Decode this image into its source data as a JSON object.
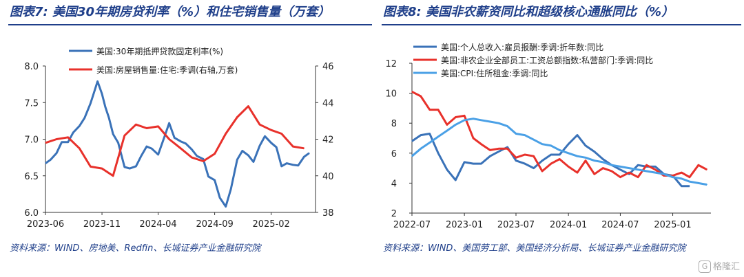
{
  "left_title": "图表7: 美国30年期房贷利率（%）和住宅销售量（万套）",
  "right_title": "图表8: 美国非农薪资同比和超级核心通胀同比（%）",
  "left_source": "资料来源：WIND、房地美、Redfin、长城证券产业金融研究院",
  "right_source": "资料来源：WIND、美国劳工部、美国经济分析局、长城证券产业金融研究院",
  "watermark": "格隆汇",
  "colors": {
    "blue": "#3a72b8",
    "red": "#e8312b",
    "lightblue": "#4aa0e6",
    "title": "#1f3f8a"
  },
  "chart_data": [
    {
      "type": "line",
      "x_ticks": [
        "2023-06",
        "2023-11",
        "2024-04",
        "2024-09",
        "2025-02"
      ],
      "ylim_left": [
        6.0,
        8.0
      ],
      "y_ticks_left": [
        "6.0",
        "6.5",
        "7.0",
        "7.5",
        "8.0"
      ],
      "ylim_right": [
        38,
        46
      ],
      "y_ticks_right": [
        "38",
        "40",
        "42",
        "44",
        "46"
      ],
      "x_range": [
        "2023-06-01",
        "2025-06-01"
      ],
      "series": [
        {
          "name": "美国:30年期抵押贷款固定利率(%)",
          "axis": "left",
          "x": [
            "2023-06-01",
            "2023-06-15",
            "2023-07-01",
            "2023-07-15",
            "2023-08-01",
            "2023-08-15",
            "2023-09-01",
            "2023-09-15",
            "2023-10-01",
            "2023-10-10",
            "2023-10-20",
            "2023-11-01",
            "2023-11-10",
            "2023-11-20",
            "2023-12-01",
            "2023-12-15",
            "2024-01-01",
            "2024-01-15",
            "2024-02-01",
            "2024-02-15",
            "2024-03-01",
            "2024-03-15",
            "2024-04-01",
            "2024-04-15",
            "2024-05-01",
            "2024-05-15",
            "2024-06-01",
            "2024-06-15",
            "2024-07-01",
            "2024-07-15",
            "2024-08-01",
            "2024-08-15",
            "2024-09-01",
            "2024-09-15",
            "2024-10-01",
            "2024-10-15",
            "2024-11-01",
            "2024-11-15",
            "2024-12-01",
            "2024-12-15",
            "2025-01-01",
            "2025-01-15",
            "2025-02-01",
            "2025-02-15",
            "2025-03-01",
            "2025-03-15",
            "2025-04-01",
            "2025-04-15",
            "2025-05-01",
            "2025-05-15"
          ],
          "values": [
            6.67,
            6.72,
            6.81,
            6.96,
            6.96,
            7.09,
            7.18,
            7.29,
            7.49,
            7.63,
            7.79,
            7.62,
            7.44,
            7.29,
            7.07,
            6.95,
            6.62,
            6.6,
            6.63,
            6.77,
            6.9,
            6.87,
            6.79,
            6.99,
            7.22,
            7.02,
            6.97,
            6.94,
            6.86,
            6.77,
            6.73,
            6.49,
            6.44,
            6.2,
            6.08,
            6.32,
            6.72,
            6.84,
            6.78,
            6.69,
            6.91,
            7.04,
            6.95,
            6.89,
            6.63,
            6.67,
            6.65,
            6.64,
            6.76,
            6.81
          ]
        },
        {
          "name": "美国:房屋销售量:住宅:季调(右轴,万套)",
          "axis": "right",
          "x": [
            "2023-06-01",
            "2023-07-01",
            "2023-08-01",
            "2023-09-01",
            "2023-10-01",
            "2023-11-01",
            "2023-12-01",
            "2024-01-01",
            "2024-02-01",
            "2024-03-01",
            "2024-04-01",
            "2024-05-01",
            "2024-06-01",
            "2024-07-01",
            "2024-08-01",
            "2024-09-01",
            "2024-10-01",
            "2024-11-01",
            "2024-12-01",
            "2025-01-01",
            "2025-02-01",
            "2025-03-01",
            "2025-04-01",
            "2025-05-01"
          ],
          "values": [
            41.8,
            42.0,
            42.1,
            41.5,
            40.5,
            40.4,
            40.0,
            42.2,
            42.8,
            42.6,
            42.7,
            42.0,
            41.5,
            41.0,
            40.8,
            41.2,
            42.3,
            43.2,
            43.8,
            42.8,
            42.5,
            42.3,
            41.6,
            41.5
          ]
        }
      ]
    },
    {
      "type": "line",
      "x_ticks": [
        "2022-07",
        "2023-01",
        "2023-07",
        "2024-01",
        "2024-07",
        "2025-01"
      ],
      "ylim": [
        2,
        12
      ],
      "y_ticks": [
        "2",
        "4",
        "6",
        "8",
        "10",
        "12"
      ],
      "x_range": [
        "2022-07-01",
        "2025-05-15"
      ],
      "series": [
        {
          "name": "美国:个人总收入:雇员报酬:季调:折年数:同比",
          "x": [
            "2022-07-01",
            "2022-08-01",
            "2022-09-01",
            "2022-10-01",
            "2022-11-01",
            "2022-12-01",
            "2023-01-01",
            "2023-02-01",
            "2023-03-01",
            "2023-04-01",
            "2023-05-01",
            "2023-06-01",
            "2023-07-01",
            "2023-08-01",
            "2023-09-01",
            "2023-10-01",
            "2023-11-01",
            "2023-12-01",
            "2024-01-01",
            "2024-02-01",
            "2024-03-01",
            "2024-04-01",
            "2024-05-01",
            "2024-06-01",
            "2024-07-01",
            "2024-08-01",
            "2024-09-01",
            "2024-10-01",
            "2024-11-01",
            "2024-12-01",
            "2025-01-01",
            "2025-02-01",
            "2025-03-01"
          ],
          "values": [
            6.8,
            7.2,
            7.3,
            6.0,
            4.9,
            4.2,
            5.4,
            5.3,
            5.3,
            5.8,
            6.1,
            6.4,
            5.5,
            5.3,
            5.0,
            5.5,
            5.9,
            5.9,
            6.6,
            7.2,
            6.5,
            6.1,
            5.6,
            5.2,
            4.9,
            4.6,
            5.2,
            5.1,
            5.1,
            4.6,
            4.5,
            3.8,
            3.8
          ]
        },
        {
          "name": "美国:非农企业全部员工:工资总额指数:私营部门:季调:同比",
          "x": [
            "2022-07-01",
            "2022-08-01",
            "2022-09-01",
            "2022-10-01",
            "2022-11-01",
            "2022-12-01",
            "2023-01-01",
            "2023-02-01",
            "2023-03-01",
            "2023-04-01",
            "2023-05-01",
            "2023-06-01",
            "2023-07-01",
            "2023-08-01",
            "2023-09-01",
            "2023-10-01",
            "2023-11-01",
            "2023-12-01",
            "2024-01-01",
            "2024-02-01",
            "2024-03-01",
            "2024-04-01",
            "2024-05-01",
            "2024-06-01",
            "2024-07-01",
            "2024-08-01",
            "2024-09-01",
            "2024-10-01",
            "2024-11-01",
            "2024-12-01",
            "2025-01-01",
            "2025-02-01",
            "2025-03-01",
            "2025-04-01",
            "2025-05-01"
          ],
          "values": [
            10.1,
            9.8,
            8.9,
            8.9,
            7.9,
            8.4,
            8.5,
            7.0,
            6.6,
            6.2,
            6.3,
            6.3,
            5.7,
            5.9,
            5.8,
            4.8,
            5.3,
            5.6,
            5.1,
            4.7,
            5.5,
            4.6,
            5.0,
            4.8,
            4.4,
            4.7,
            4.4,
            5.2,
            4.9,
            4.5,
            4.5,
            4.7,
            4.4,
            5.2,
            4.9
          ]
        },
        {
          "name": "美国:CPI:住所租金:季调:同比",
          "x": [
            "2022-07-01",
            "2022-08-01",
            "2022-09-01",
            "2022-10-01",
            "2022-11-01",
            "2022-12-01",
            "2023-01-01",
            "2023-02-01",
            "2023-03-01",
            "2023-04-01",
            "2023-05-01",
            "2023-06-01",
            "2023-07-01",
            "2023-08-01",
            "2023-09-01",
            "2023-10-01",
            "2023-11-01",
            "2023-12-01",
            "2024-01-01",
            "2024-02-01",
            "2024-03-01",
            "2024-04-01",
            "2024-05-01",
            "2024-06-01",
            "2024-07-01",
            "2024-08-01",
            "2024-09-01",
            "2024-10-01",
            "2024-11-01",
            "2024-12-01",
            "2025-01-01",
            "2025-02-01",
            "2025-03-01",
            "2025-04-01",
            "2025-05-01"
          ],
          "values": [
            5.8,
            6.3,
            6.7,
            7.1,
            7.5,
            7.9,
            8.2,
            8.3,
            8.2,
            8.1,
            8.0,
            7.8,
            7.3,
            7.2,
            6.9,
            6.6,
            6.5,
            6.2,
            6.0,
            5.8,
            5.7,
            5.5,
            5.4,
            5.2,
            5.1,
            5.0,
            4.9,
            4.8,
            4.7,
            4.6,
            4.4,
            4.3,
            4.1,
            4.0,
            3.9
          ]
        }
      ]
    }
  ]
}
